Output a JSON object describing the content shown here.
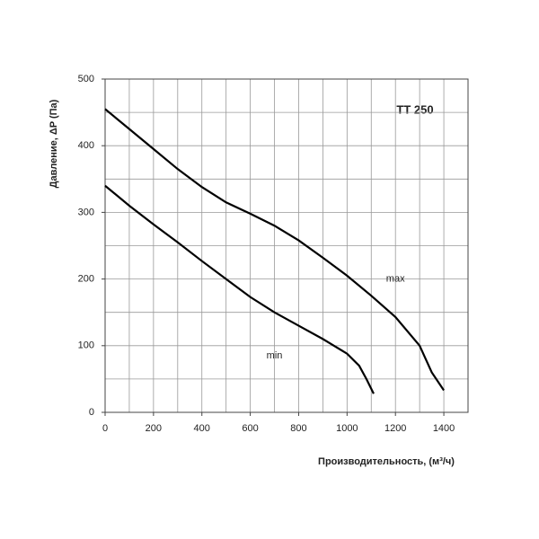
{
  "chart_data": {
    "type": "line",
    "title": "TT 250",
    "x_label": "Производительность, (м³/ч)",
    "y_label": "Давление, ΔP (Па)",
    "xlim": [
      0,
      1500
    ],
    "ylim": [
      0,
      500
    ],
    "xticks": [
      0,
      200,
      400,
      600,
      800,
      1000,
      1200,
      1400
    ],
    "yticks": [
      0,
      100,
      200,
      300,
      400,
      500
    ],
    "xgrid": [
      0,
      100,
      200,
      300,
      400,
      500,
      600,
      700,
      800,
      900,
      1000,
      1100,
      1200,
      1300,
      1400,
      1500
    ],
    "ygrid": [
      0,
      50,
      100,
      150,
      200,
      250,
      300,
      350,
      400,
      450,
      500
    ],
    "series": [
      {
        "name": "max",
        "color": "#000000",
        "x": [
          0,
          100,
          200,
          300,
          400,
          500,
          600,
          700,
          800,
          900,
          1000,
          1100,
          1200,
          1300,
          1350,
          1400
        ],
        "values": [
          455,
          425,
          395,
          365,
          338,
          315,
          298,
          280,
          258,
          232,
          205,
          175,
          143,
          100,
          60,
          33
        ]
      },
      {
        "name": "min",
        "color": "#000000",
        "x": [
          0,
          100,
          200,
          300,
          400,
          500,
          600,
          700,
          800,
          900,
          1000,
          1050,
          1080,
          1110
        ],
        "values": [
          340,
          310,
          282,
          255,
          227,
          200,
          173,
          150,
          130,
          110,
          88,
          70,
          50,
          28
        ]
      }
    ]
  }
}
